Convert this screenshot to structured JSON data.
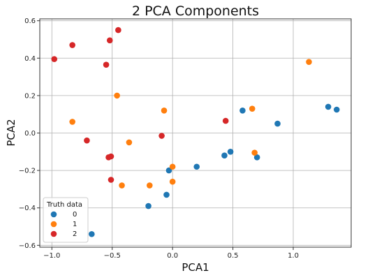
{
  "chart_data": {
    "type": "scatter",
    "title": "2 PCA Components",
    "xlabel": "PCA1",
    "ylabel": "PCA2",
    "xlim": [
      -1.1,
      1.48
    ],
    "ylim": [
      -0.61,
      0.61
    ],
    "xticks": [
      -1.0,
      -0.5,
      0.0,
      0.5,
      1.0
    ],
    "xtick_labels": [
      "−1.0",
      "−0.5",
      "0.0",
      "0.5",
      "1.0"
    ],
    "yticks": [
      -0.6,
      -0.4,
      -0.2,
      0.0,
      0.2,
      0.4,
      0.6
    ],
    "ytick_labels": [
      "−0.6",
      "−0.4",
      "−0.2",
      "0.0",
      "0.2",
      "0.4",
      "0.6"
    ],
    "grid": true,
    "legend": {
      "title": "Truth data",
      "location": "lower-left"
    },
    "series": [
      {
        "name": "0",
        "color": "#1f77b4",
        "points": [
          [
            -0.67,
            -0.54
          ],
          [
            -0.2,
            -0.39
          ],
          [
            -0.05,
            -0.33
          ],
          [
            -0.03,
            -0.2
          ],
          [
            0.2,
            -0.18
          ],
          [
            0.43,
            -0.12
          ],
          [
            0.48,
            -0.1
          ],
          [
            0.58,
            0.12
          ],
          [
            0.7,
            -0.13
          ],
          [
            0.87,
            0.05
          ],
          [
            1.29,
            0.14
          ],
          [
            1.36,
            0.125
          ]
        ]
      },
      {
        "name": "1",
        "color": "#ff7f0e",
        "points": [
          [
            -0.83,
            0.06
          ],
          [
            -0.46,
            0.2
          ],
          [
            -0.36,
            -0.05
          ],
          [
            -0.42,
            -0.28
          ],
          [
            -0.19,
            -0.28
          ],
          [
            -0.07,
            0.12
          ],
          [
            0.0,
            -0.18
          ],
          [
            0.0,
            -0.26
          ],
          [
            0.66,
            0.13
          ],
          [
            0.68,
            -0.105
          ],
          [
            1.13,
            0.38
          ]
        ]
      },
      {
        "name": "2",
        "color": "#d62728",
        "points": [
          [
            -0.98,
            0.395
          ],
          [
            -0.83,
            0.47
          ],
          [
            -0.71,
            -0.04
          ],
          [
            -0.55,
            0.365
          ],
          [
            -0.52,
            0.495
          ],
          [
            -0.45,
            0.55
          ],
          [
            -0.53,
            -0.13
          ],
          [
            -0.51,
            -0.125
          ],
          [
            -0.51,
            -0.25
          ],
          [
            -0.09,
            -0.015
          ],
          [
            0.44,
            0.065
          ]
        ]
      }
    ]
  }
}
